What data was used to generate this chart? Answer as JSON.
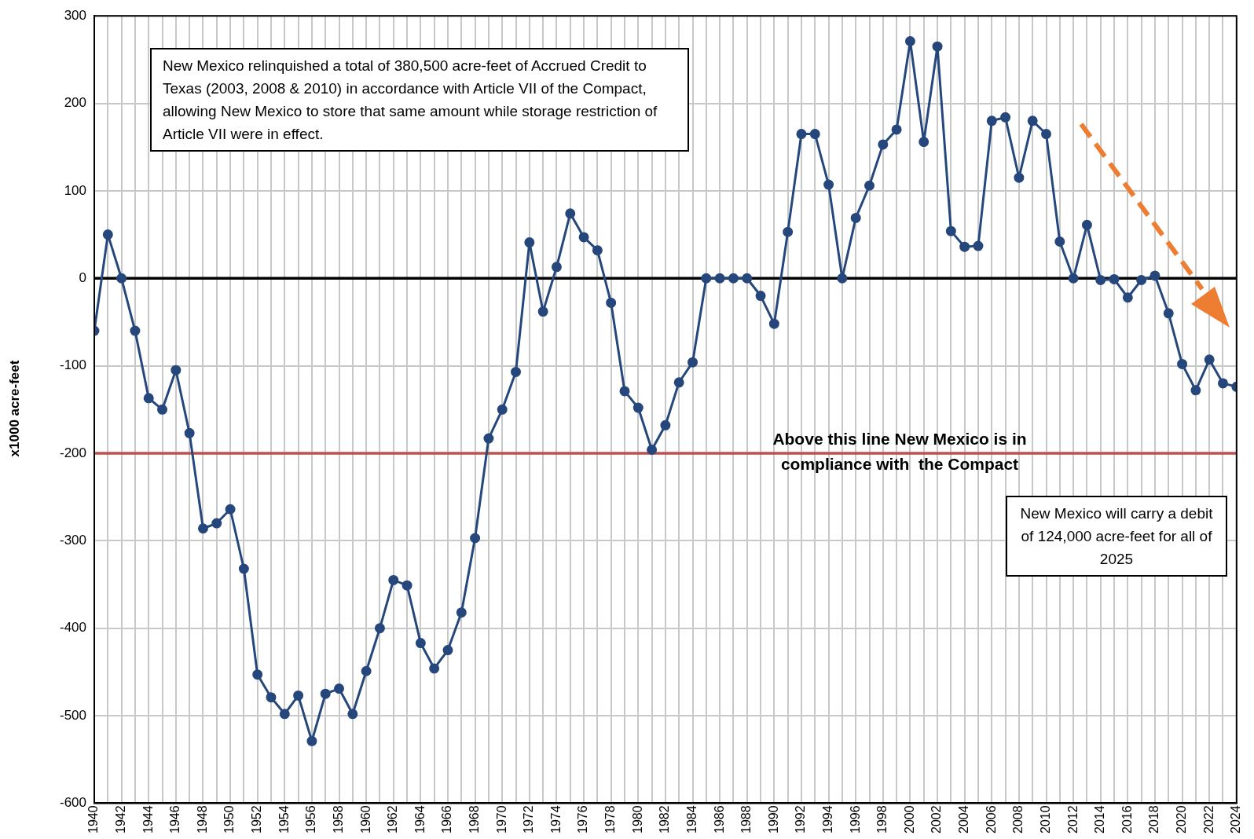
{
  "chart_data": {
    "type": "line",
    "ylabel": "x1000 acre-feet",
    "x": [
      1940,
      1941,
      1942,
      1943,
      1944,
      1945,
      1946,
      1947,
      1948,
      1949,
      1950,
      1951,
      1952,
      1953,
      1954,
      1955,
      1956,
      1957,
      1958,
      1959,
      1960,
      1961,
      1962,
      1963,
      1964,
      1965,
      1966,
      1967,
      1968,
      1969,
      1970,
      1971,
      1972,
      1973,
      1974,
      1975,
      1976,
      1977,
      1978,
      1979,
      1980,
      1981,
      1982,
      1983,
      1984,
      1985,
      1986,
      1987,
      1988,
      1989,
      1990,
      1991,
      1992,
      1993,
      1994,
      1995,
      1996,
      1997,
      1998,
      1999,
      2000,
      2001,
      2002,
      2003,
      2004,
      2005,
      2006,
      2007,
      2008,
      2009,
      2010,
      2011,
      2012,
      2013,
      2014,
      2015,
      2016,
      2017,
      2018,
      2019,
      2020,
      2021,
      2022,
      2023,
      2024
    ],
    "series": [
      {
        "color": "#25477c",
        "values": [
          -60,
          50,
          0,
          -60,
          -137,
          -150,
          -105,
          -177,
          -286,
          -280,
          -264,
          -332,
          -453,
          -479,
          -498,
          -477,
          -529,
          -475,
          -469,
          -498,
          -449,
          -400,
          -345,
          -351,
          -417,
          -446,
          -425,
          -382,
          -297,
          -183,
          -150,
          -107,
          41,
          -38,
          13,
          74,
          47,
          32,
          -28,
          -129,
          -148,
          -196,
          -168,
          -119,
          -96,
          0,
          0,
          0,
          0,
          -20,
          -52,
          53,
          165,
          165,
          107,
          0,
          69,
          106,
          153,
          170,
          271,
          156,
          265,
          54,
          36,
          37,
          180,
          184,
          115,
          180,
          165,
          42,
          0,
          61,
          -2,
          -1,
          -22,
          -2,
          3,
          -40,
          -98,
          -128,
          -93,
          -120,
          -124
        ]
      }
    ],
    "xlim": [
      1940,
      2024
    ],
    "xticks": [
      1940,
      {
        "value": 1941,
        "label": null
      },
      1942,
      {
        "value": 1943,
        "label": null
      },
      1944,
      {
        "value": 1945,
        "label": null
      },
      1946,
      {
        "value": 1947,
        "label": null
      },
      1948,
      {
        "value": 1949,
        "label": null
      },
      1950,
      {
        "value": 1951,
        "label": null
      },
      1952,
      {
        "value": 1953,
        "label": null
      },
      1954,
      {
        "value": 1955,
        "label": null
      },
      1956,
      {
        "value": 1957,
        "label": null
      },
      1958,
      {
        "value": 1959,
        "label": null
      },
      1960,
      {
        "value": 1961,
        "label": null
      },
      1962,
      {
        "value": 1963,
        "label": null
      },
      1964,
      {
        "value": 1965,
        "label": null
      },
      1966,
      {
        "value": 1967,
        "label": null
      },
      1968,
      {
        "value": 1969,
        "label": null
      },
      1970,
      {
        "value": 1971,
        "label": null
      },
      1972,
      {
        "value": 1973,
        "label": null
      },
      1974,
      {
        "value": 1975,
        "label": null
      },
      1976,
      {
        "value": 1977,
        "label": null
      },
      1978,
      {
        "value": 1979,
        "label": null
      },
      1980,
      {
        "value": 1981,
        "label": null
      },
      1982,
      {
        "value": 1983,
        "label": null
      },
      1984,
      {
        "value": 1985,
        "label": null
      },
      1986,
      {
        "value": 1987,
        "label": null
      },
      1988,
      {
        "value": 1989,
        "label": null
      },
      1990,
      {
        "value": 1991,
        "label": null
      },
      1992,
      {
        "value": 1993,
        "label": null
      },
      1994,
      {
        "value": 1995,
        "label": null
      },
      1996,
      {
        "value": 1997,
        "label": null
      },
      1998,
      {
        "value": 1999,
        "label": null
      },
      2000,
      {
        "value": 2001,
        "label": null
      },
      2002,
      {
        "value": 2003,
        "label": null
      },
      2004,
      {
        "value": 2005,
        "label": null
      },
      2006,
      {
        "value": 2007,
        "label": null
      },
      2008,
      {
        "value": 2009,
        "label": null
      },
      2010,
      {
        "value": 2011,
        "label": null
      },
      2012,
      {
        "value": 2013,
        "label": null
      },
      2014,
      {
        "value": 2015,
        "label": null
      },
      2016,
      {
        "value": 2017,
        "label": null
      },
      2018,
      {
        "value": 2019,
        "label": null
      },
      2020,
      {
        "value": 2021,
        "label": null
      },
      2022,
      {
        "value": 2023,
        "label": null
      },
      2024
    ],
    "ylim": [
      -600,
      300
    ],
    "yticks": [
      -600,
      -500,
      -400,
      -300,
      -200,
      -100,
      0,
      100,
      200,
      300
    ],
    "grid": true,
    "legend": false,
    "marker": "circle",
    "line_style": "solid",
    "ref_lines": [
      {
        "axis": "y",
        "value": 0,
        "color": "#000000"
      },
      {
        "axis": "y",
        "value": -200,
        "color": "#c0504d",
        "label": "Above this line New Mexico is in compliance with  the Compact"
      }
    ],
    "annotations": [
      "New Mexico relinquished a total of 380,500 acre-feet of Accrued Credit to Texas (2003, 2008 & 2010) in accordance with Article VII of the Compact, allowing New Mexico to store that same amount while storage restriction of Article VII were in effect.",
      "New Mexico will carry a debit of 124,000 acre-feet for all of 2025"
    ]
  }
}
